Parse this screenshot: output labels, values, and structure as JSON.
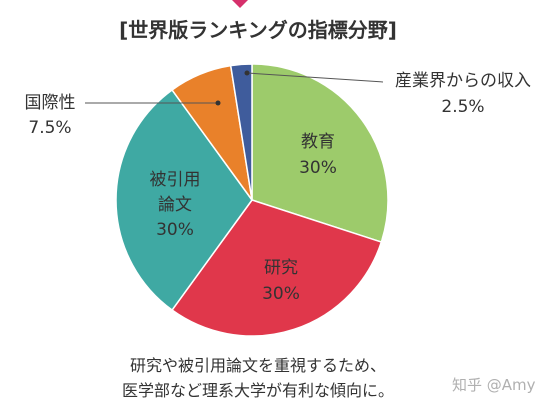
{
  "chart_data": {
    "type": "pie",
    "title": "[世界版ランキングの指標分野]",
    "categories": [
      "教育",
      "研究",
      "被引用論文",
      "国際性",
      "産業界からの収入"
    ],
    "values": [
      30,
      30,
      30,
      7.5,
      2.5
    ],
    "value_labels": [
      "30%",
      "30%",
      "30%",
      "7.5%",
      "2.5%"
    ],
    "colors": [
      "#9dcb6b",
      "#e0374b",
      "#3fa9a3",
      "#e9812a",
      "#3f5c9c"
    ],
    "annotations": [
      "研究や被引用論文を重視するため、",
      "医学部など理系大学が有利な傾向に。",
      "知乎 @Amy"
    ]
  }
}
